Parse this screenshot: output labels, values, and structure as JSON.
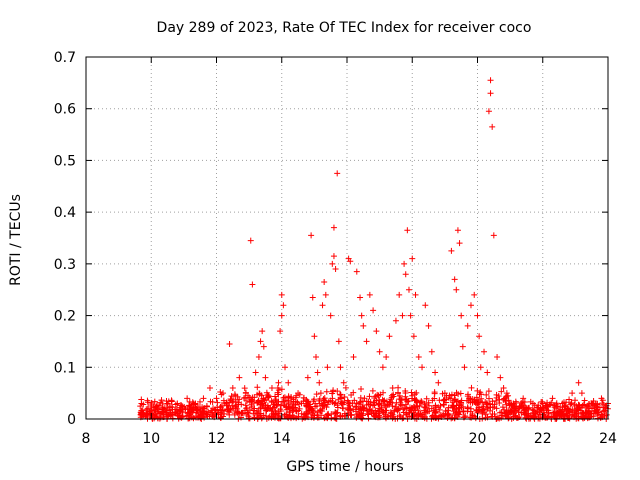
{
  "chart_data": {
    "type": "scatter",
    "title": "Day 289 of 2023, Rate Of TEC Index for receiver coco",
    "xlabel": "GPS time / hours",
    "ylabel": "ROTI / TECUs",
    "xlim": [
      8,
      24
    ],
    "ylim": [
      0,
      0.7
    ],
    "x_ticks": [
      8,
      10,
      12,
      14,
      16,
      18,
      20,
      22,
      24
    ],
    "x_tick_labels": [
      "8",
      "10",
      "12",
      "14",
      "16",
      "18",
      "20",
      "22",
      "24"
    ],
    "y_ticks": [
      0,
      0.1,
      0.2,
      0.3,
      0.4,
      0.5,
      0.6,
      0.7
    ],
    "y_tick_labels": [
      "0",
      "0.1",
      "0.2",
      "0.3",
      "0.4",
      "0.5",
      "0.6",
      "0.7"
    ],
    "grid": true,
    "marker": "+",
    "marker_color": "#ff0000",
    "series": [
      {
        "points": [
          [
            9.7,
            0.03
          ],
          [
            9.9,
            0.02
          ],
          [
            10.2,
            0.02
          ],
          [
            10.5,
            0.03
          ],
          [
            10.8,
            0.03
          ],
          [
            11.1,
            0.04
          ],
          [
            11.3,
            0.03
          ],
          [
            11.6,
            0.04
          ],
          [
            11.8,
            0.06
          ],
          [
            12.0,
            0.04
          ],
          [
            12.2,
            0.05
          ],
          [
            12.4,
            0.145
          ],
          [
            12.5,
            0.06
          ],
          [
            12.7,
            0.08
          ],
          [
            12.9,
            0.05
          ],
          [
            13.05,
            0.345
          ],
          [
            13.1,
            0.26
          ],
          [
            13.2,
            0.09
          ],
          [
            13.3,
            0.12
          ],
          [
            13.4,
            0.17
          ],
          [
            13.35,
            0.15
          ],
          [
            13.45,
            0.14
          ],
          [
            13.5,
            0.08
          ],
          [
            13.7,
            0.06
          ],
          [
            13.9,
            0.07
          ],
          [
            13.95,
            0.17
          ],
          [
            14.0,
            0.2
          ],
          [
            14.0,
            0.24
          ],
          [
            14.05,
            0.22
          ],
          [
            14.1,
            0.1
          ],
          [
            14.2,
            0.07
          ],
          [
            14.5,
            0.05
          ],
          [
            14.8,
            0.08
          ],
          [
            14.9,
            0.355
          ],
          [
            14.95,
            0.235
          ],
          [
            15.0,
            0.16
          ],
          [
            15.05,
            0.12
          ],
          [
            15.1,
            0.09
          ],
          [
            15.15,
            0.07
          ],
          [
            15.2,
            0.05
          ],
          [
            15.25,
            0.22
          ],
          [
            15.3,
            0.265
          ],
          [
            15.35,
            0.24
          ],
          [
            15.4,
            0.1
          ],
          [
            15.5,
            0.2
          ],
          [
            15.55,
            0.3
          ],
          [
            15.6,
            0.315
          ],
          [
            15.6,
            0.37
          ],
          [
            15.65,
            0.29
          ],
          [
            15.7,
            0.475
          ],
          [
            15.75,
            0.15
          ],
          [
            15.8,
            0.1
          ],
          [
            15.9,
            0.07
          ],
          [
            16.05,
            0.31
          ],
          [
            16.1,
            0.305
          ],
          [
            16.2,
            0.12
          ],
          [
            16.3,
            0.285
          ],
          [
            16.4,
            0.235
          ],
          [
            16.45,
            0.2
          ],
          [
            16.5,
            0.18
          ],
          [
            16.6,
            0.15
          ],
          [
            16.7,
            0.24
          ],
          [
            16.8,
            0.21
          ],
          [
            16.9,
            0.17
          ],
          [
            17.0,
            0.13
          ],
          [
            17.1,
            0.1
          ],
          [
            17.2,
            0.12
          ],
          [
            17.3,
            0.16
          ],
          [
            17.4,
            0.06
          ],
          [
            17.5,
            0.19
          ],
          [
            17.6,
            0.24
          ],
          [
            17.7,
            0.2
          ],
          [
            17.75,
            0.3
          ],
          [
            17.8,
            0.28
          ],
          [
            17.85,
            0.365
          ],
          [
            17.9,
            0.25
          ],
          [
            17.95,
            0.2
          ],
          [
            18.0,
            0.31
          ],
          [
            18.05,
            0.16
          ],
          [
            18.1,
            0.24
          ],
          [
            18.2,
            0.12
          ],
          [
            18.3,
            0.1
          ],
          [
            18.4,
            0.22
          ],
          [
            18.5,
            0.18
          ],
          [
            18.6,
            0.13
          ],
          [
            18.7,
            0.09
          ],
          [
            18.8,
            0.07
          ],
          [
            19.0,
            0.05
          ],
          [
            19.2,
            0.325
          ],
          [
            19.3,
            0.27
          ],
          [
            19.35,
            0.25
          ],
          [
            19.4,
            0.365
          ],
          [
            19.45,
            0.34
          ],
          [
            19.5,
            0.2
          ],
          [
            19.55,
            0.14
          ],
          [
            19.6,
            0.1
          ],
          [
            19.7,
            0.18
          ],
          [
            19.8,
            0.22
          ],
          [
            19.9,
            0.24
          ],
          [
            20.0,
            0.2
          ],
          [
            20.05,
            0.16
          ],
          [
            20.1,
            0.1
          ],
          [
            20.2,
            0.13
          ],
          [
            20.3,
            0.09
          ],
          [
            20.35,
            0.595
          ],
          [
            20.4,
            0.63
          ],
          [
            20.4,
            0.655
          ],
          [
            20.45,
            0.565
          ],
          [
            20.5,
            0.355
          ],
          [
            20.6,
            0.12
          ],
          [
            20.7,
            0.08
          ],
          [
            20.8,
            0.06
          ],
          [
            20.9,
            0.05
          ],
          [
            21.1,
            0.03
          ],
          [
            21.4,
            0.04
          ],
          [
            21.7,
            0.03
          ],
          [
            22.0,
            0.03
          ],
          [
            22.3,
            0.04
          ],
          [
            22.6,
            0.03
          ],
          [
            22.9,
            0.05
          ],
          [
            23.1,
            0.07
          ],
          [
            23.2,
            0.05
          ],
          [
            23.5,
            0.03
          ],
          [
            23.8,
            0.04
          ],
          [
            24.0,
            0.03
          ]
        ]
      }
    ]
  }
}
